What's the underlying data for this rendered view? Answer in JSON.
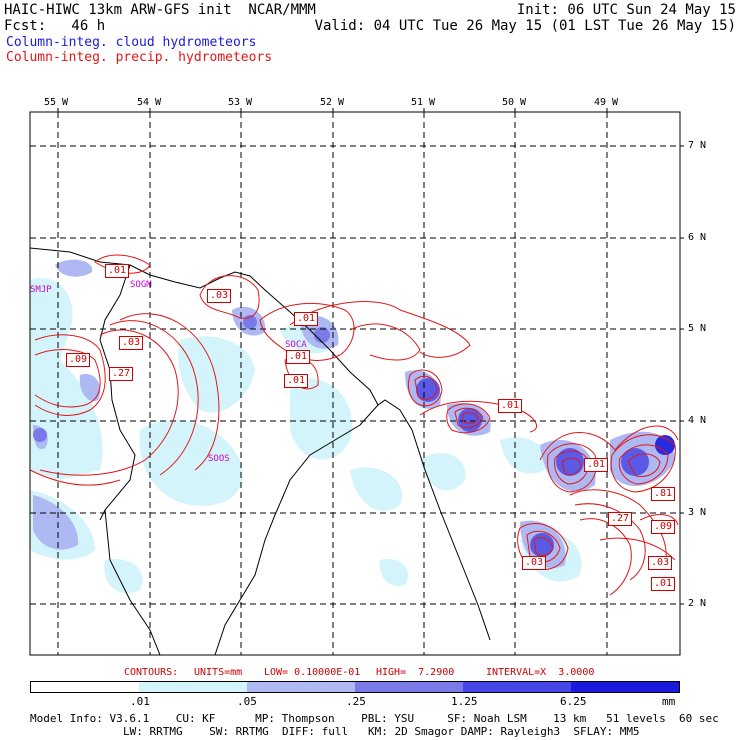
{
  "header": {
    "left1": "HAIC-HIWC 13km ARW-GFS init  NCAR/MMM",
    "right1": "Init: 06 UTC Sun 24 May 15",
    "left2": "Fcst:   46 h",
    "right2": "Valid: 04 UTC Tue 26 May 15 (01 LST Tue 26 May 15)",
    "legend_cloud": "Column-integ. cloud hydrometeors",
    "legend_precip": "Column-integ. precip. hydrometeors"
  },
  "colors": {
    "cloud_legend": "#1a1ad6",
    "precip": "#e01818",
    "place_labels": "#cc00cc"
  },
  "lon_ticks": [
    "55 W",
    "54 W",
    "53 W",
    "52 W",
    "51 W",
    "50 W",
    "49 W"
  ],
  "lat_ticks": [
    "7 N",
    "6 N",
    "5 N",
    "4 N",
    "3 N",
    "2 N"
  ],
  "place_labels": [
    "SMJP",
    "SOGM",
    "SOCA",
    "SOOS"
  ],
  "contour_labels": [
    ".01",
    ".03",
    ".01",
    ".03",
    ".09",
    ".27",
    ".01",
    ".01",
    ".01",
    ".03",
    ".01",
    ".81",
    ".27",
    ".09",
    ".03",
    ".01"
  ],
  "contour_info": {
    "contours": "CONTOURS:",
    "units": "UNITS=mm",
    "low": "LOW= 0.10000E-01",
    "high": "HIGH=  7.2900",
    "interval": "INTERVAL=X  3.0000"
  },
  "colorbar": {
    "ticks": [
      ".01",
      ".05",
      ".25",
      "1.25",
      "6.25"
    ],
    "unit": "mm",
    "colors": [
      "#ffffff",
      "#d4f4fb",
      "#aeb8f2",
      "#7a7ae8",
      "#4646e6",
      "#1a1adc"
    ]
  },
  "model_info": {
    "line1": "Model Info: V3.6.1    CU: KF      MP: Thompson    PBL: YSU     SF: Noah LSM    13 km   51 levels  60 sec",
    "line2": "LW: RRTMG    SW: RRTMG  DIFF: full   KM: 2D Smagor DAMP: Rayleigh3  SFLAY: MM5"
  }
}
